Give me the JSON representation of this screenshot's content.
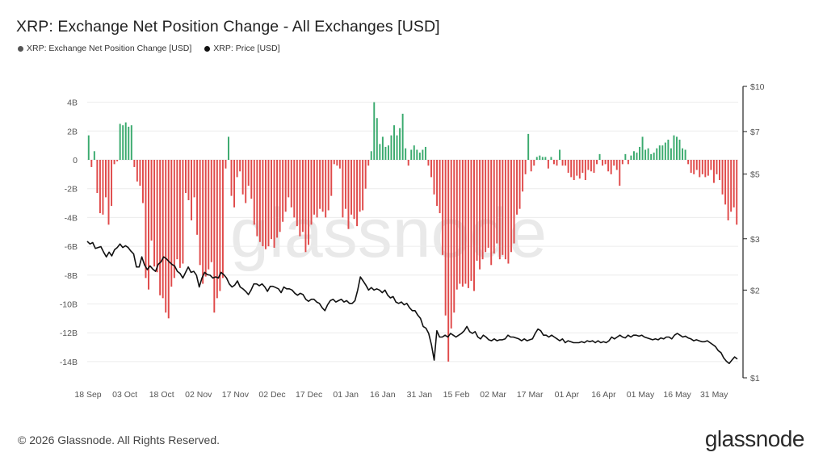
{
  "title": "XRP: Exchange Net Position Change - All Exchanges [USD]",
  "legend": [
    {
      "label": "XRP: Exchange Net Position Change [USD]",
      "color": "#555555"
    },
    {
      "label": "XRP: Price [USD]",
      "color": "#111111"
    }
  ],
  "footer": "© 2026 Glassnode. All Rights Reserved.",
  "brand": "glassnode",
  "watermark": "glassnode",
  "colors": {
    "positive": "#3aaa6e",
    "negative": "#e04a4a",
    "price": "#111111",
    "grid": "#ececec"
  },
  "chart_data": {
    "type": "bar",
    "title": "XRP: Exchange Net Position Change - All Exchanges [USD]",
    "x_tick_labels": [
      "18 Sep",
      "03 Oct",
      "18 Oct",
      "02 Nov",
      "17 Nov",
      "02 Dec",
      "17 Dec",
      "01 Jan",
      "16 Jan",
      "31 Jan",
      "15 Feb",
      "02 Mar",
      "17 Mar",
      "01 Apr",
      "16 Apr",
      "01 May",
      "16 May",
      "31 May"
    ],
    "y_left": {
      "ticks": [
        4,
        2,
        0,
        -2,
        -4,
        -6,
        -8,
        -10,
        -12,
        -14
      ],
      "tick_labels": [
        "4B",
        "2B",
        "0",
        "-2B",
        "-4B",
        "-6B",
        "-8B",
        "-10B",
        "-12B",
        "-14B"
      ],
      "range": [
        -14,
        4
      ],
      "unit": "B USD"
    },
    "y_right": {
      "scale": "log",
      "ticks": [
        10,
        7,
        5,
        3,
        2,
        1
      ],
      "tick_labels": [
        "$10",
        "$7",
        "$5",
        "$3",
        "$2",
        "$1"
      ],
      "range": [
        1,
        10
      ],
      "unit": "USD"
    },
    "series": [
      {
        "name": "XRP: Exchange Net Position Change [USD]",
        "axis": "left",
        "type": "bar",
        "values": [
          1.7,
          -0.5,
          0.6,
          -2.3,
          -3.7,
          -3.8,
          -2.6,
          -4.5,
          -3.2,
          -0.3,
          -0.1,
          2.5,
          2.4,
          2.6,
          2.3,
          2.4,
          -0.5,
          -1.5,
          -1.8,
          -3.0,
          -8.2,
          -9.0,
          -5.6,
          -7.4,
          -7.8,
          -9.4,
          -9.6,
          -10.6,
          -11.0,
          -8.8,
          -8.2,
          -6.9,
          -7.5,
          -7.2,
          -2.3,
          -2.8,
          -4.2,
          -2.6,
          -5.2,
          -7.3,
          -8.6,
          -8.1,
          -7.6,
          -7.1,
          -10.6,
          -9.6,
          -9.1,
          -8.2,
          -0.6,
          1.6,
          -2.5,
          -3.3,
          -1.2,
          -0.8,
          -2.4,
          -3.0,
          -1.8,
          -2.7,
          -4.5,
          -5.3,
          -5.7,
          -6.0,
          -6.2,
          -6.0,
          -5.5,
          -6.1,
          -5.4,
          -5.0,
          -4.3,
          -3.6,
          -2.6,
          -3.3,
          -4.0,
          -4.6,
          -5.3,
          -5.0,
          -6.4,
          -5.9,
          -4.5,
          -3.8,
          -4.0,
          -3.4,
          -3.6,
          -4.0,
          -3.5,
          -2.5,
          -0.3,
          -0.4,
          -0.6,
          -4.0,
          -3.4,
          -4.8,
          -3.8,
          -4.1,
          -4.6,
          -3.6,
          -3.5,
          -2.0,
          -0.4,
          0.6,
          4.0,
          2.9,
          1.1,
          1.6,
          0.9,
          1.0,
          1.7,
          2.4,
          1.7,
          2.2,
          3.2,
          0.8,
          -0.4,
          0.7,
          1.0,
          0.7,
          0.5,
          0.7,
          0.9,
          -0.4,
          -1.2,
          -2.4,
          -3.2,
          -3.7,
          -6.6,
          -10.8,
          -14.0,
          -11.7,
          -10.6,
          -9.0,
          -8.6,
          -8.8,
          -8.6,
          -8.9,
          -8.4,
          -9.1,
          -7.0,
          -7.6,
          -6.9,
          -6.4,
          -6.1,
          -7.3,
          -6.5,
          -5.8,
          -6.9,
          -6.6,
          -6.9,
          -7.2,
          -6.4,
          -5.8,
          -3.8,
          -3.4,
          -2.2,
          -1.0,
          1.8,
          -0.8,
          -0.4,
          0.2,
          0.3,
          0.2,
          0.2,
          -0.6,
          0.2,
          -0.3,
          -0.4,
          0.7,
          -0.4,
          -0.4,
          -0.9,
          -1.2,
          -1.4,
          -1.1,
          -1.3,
          -0.9,
          -1.4,
          -0.7,
          -0.8,
          -0.9,
          -0.3,
          0.4,
          -0.4,
          -0.3,
          -0.8,
          -1.0,
          -0.4,
          -0.7,
          -1.8,
          -0.3,
          0.4,
          -0.3,
          0.3,
          0.6,
          0.5,
          0.9,
          1.6,
          0.7,
          0.8,
          0.4,
          0.5,
          0.8,
          1.0,
          1.0,
          1.2,
          1.4,
          0.8,
          1.7,
          1.6,
          1.4,
          0.8,
          0.7,
          -0.3,
          -0.9,
          -1.0,
          -0.7,
          -1.2,
          -1.0,
          -1.2,
          -1.1,
          -0.7,
          -1.6,
          -1.0,
          -1.4,
          -2.4,
          -3.1,
          -4.2,
          -3.6,
          -3.3,
          -4.5
        ]
      },
      {
        "name": "XRP: Price [USD]",
        "axis": "right",
        "type": "line",
        "points": [
          2.94,
          2.88,
          2.91,
          2.78,
          2.8,
          2.82,
          2.7,
          2.6,
          2.7,
          2.62,
          2.75,
          2.8,
          2.88,
          2.8,
          2.84,
          2.8,
          2.72,
          2.66,
          2.4,
          2.4,
          2.6,
          2.44,
          2.35,
          2.42,
          2.36,
          2.32,
          2.45,
          2.5,
          2.6,
          2.56,
          2.5,
          2.45,
          2.42,
          2.32,
          2.28,
          2.2,
          2.3,
          2.4,
          2.3,
          2.32,
          2.25,
          2.05,
          2.2,
          2.3,
          2.26,
          2.25,
          2.2,
          2.22,
          2.2,
          2.3,
          2.26,
          2.2,
          2.1,
          2.05,
          2.08,
          2.15,
          2.05,
          2.02,
          1.98,
          1.93,
          2.0,
          2.1,
          2.1,
          2.07,
          2.1,
          2.05,
          1.98,
          2.06,
          2.06,
          2.04,
          2.02,
          1.96,
          2.05,
          2.02,
          2.02,
          2.0,
          1.95,
          1.92,
          1.95,
          1.93,
          1.86,
          1.83,
          1.86,
          1.86,
          1.82,
          1.8,
          1.74,
          1.7,
          1.78,
          1.84,
          1.86,
          1.82,
          1.84,
          1.86,
          1.82,
          1.84,
          1.8,
          1.8,
          1.84,
          2.0,
          2.22,
          2.15,
          2.08,
          2.0,
          2.04,
          2.0,
          2.02,
          2.0,
          1.96,
          2.0,
          1.92,
          1.88,
          1.9,
          1.82,
          1.8,
          1.82,
          1.78,
          1.8,
          1.74,
          1.7,
          1.7,
          1.64,
          1.6,
          1.5,
          1.48,
          1.42,
          1.3,
          1.15,
          1.45,
          1.38,
          1.38,
          1.4,
          1.38,
          1.42,
          1.4,
          1.38,
          1.4,
          1.42,
          1.45,
          1.5,
          1.44,
          1.42,
          1.44,
          1.38,
          1.36,
          1.4,
          1.38,
          1.35,
          1.34,
          1.36,
          1.34,
          1.35,
          1.35,
          1.36,
          1.4,
          1.38,
          1.38,
          1.37,
          1.36,
          1.34,
          1.36,
          1.34,
          1.35,
          1.36,
          1.42,
          1.47,
          1.45,
          1.4,
          1.4,
          1.38,
          1.4,
          1.38,
          1.36,
          1.34,
          1.36,
          1.32,
          1.34,
          1.33,
          1.32,
          1.32,
          1.32,
          1.33,
          1.32,
          1.34,
          1.33,
          1.34,
          1.32,
          1.34,
          1.32,
          1.33,
          1.32,
          1.34,
          1.38,
          1.36,
          1.38,
          1.4,
          1.38,
          1.37,
          1.4,
          1.38,
          1.4,
          1.4,
          1.39,
          1.4,
          1.38,
          1.37,
          1.36,
          1.35,
          1.36,
          1.35,
          1.37,
          1.36,
          1.38,
          1.38,
          1.36,
          1.4,
          1.42,
          1.4,
          1.38,
          1.39,
          1.37,
          1.36,
          1.34,
          1.35,
          1.34,
          1.33,
          1.33,
          1.34,
          1.32,
          1.3,
          1.28,
          1.24,
          1.22,
          1.17,
          1.14,
          1.12,
          1.15,
          1.18,
          1.16
        ]
      }
    ],
    "grid": true,
    "legend_position": "top-left"
  }
}
